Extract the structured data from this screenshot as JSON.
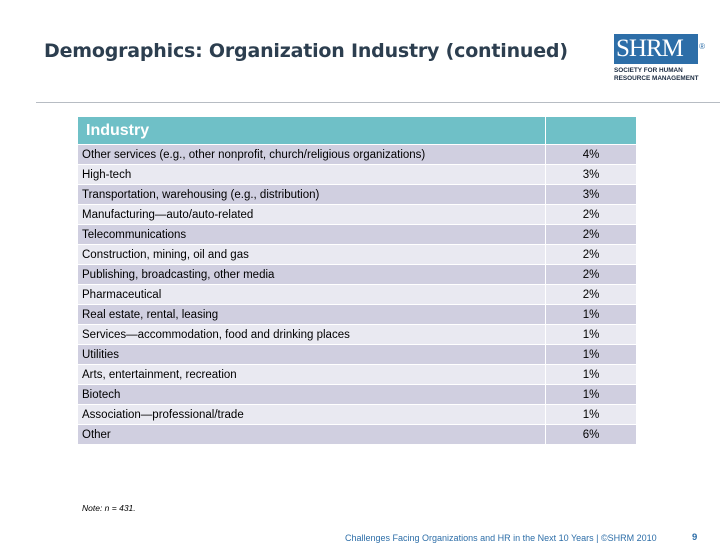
{
  "title": "Demographics: Organization Industry (continued)",
  "logo": {
    "mark": "SHRM",
    "registered": "®",
    "line1": "SOCIETY FOR HUMAN",
    "line2": "RESOURCE MANAGEMENT"
  },
  "table": {
    "header": "Industry",
    "header_value": "",
    "rows": [
      {
        "label": "Other services (e.g., other nonprofit, church/religious organizations)",
        "value": "4%"
      },
      {
        "label": "High-tech",
        "value": "3%"
      },
      {
        "label": "Transportation, warehousing (e.g., distribution)",
        "value": "3%"
      },
      {
        "label": "Manufacturing—auto/auto-related",
        "value": "2%"
      },
      {
        "label": "Telecommunications",
        "value": "2%"
      },
      {
        "label": "Construction, mining, oil and gas",
        "value": "2%"
      },
      {
        "label": "Publishing, broadcasting, other media",
        "value": "2%"
      },
      {
        "label": "Pharmaceutical",
        "value": "2%"
      },
      {
        "label": "Real estate, rental, leasing",
        "value": "1%"
      },
      {
        "label": "Services—accommodation, food and drinking places",
        "value": "1%"
      },
      {
        "label": "Utilities",
        "value": "1%"
      },
      {
        "label": "Arts, entertainment, recreation",
        "value": "1%"
      },
      {
        "label": "Biotech",
        "value": "1%"
      },
      {
        "label": "Association—professional/trade",
        "value": "1%"
      },
      {
        "label": "Other",
        "value": "6%"
      }
    ]
  },
  "note": "Note: n = 431.",
  "footer": "Challenges Facing Organizations and HR in the Next 10 Years | ©SHRM 2010",
  "page_number": "9"
}
